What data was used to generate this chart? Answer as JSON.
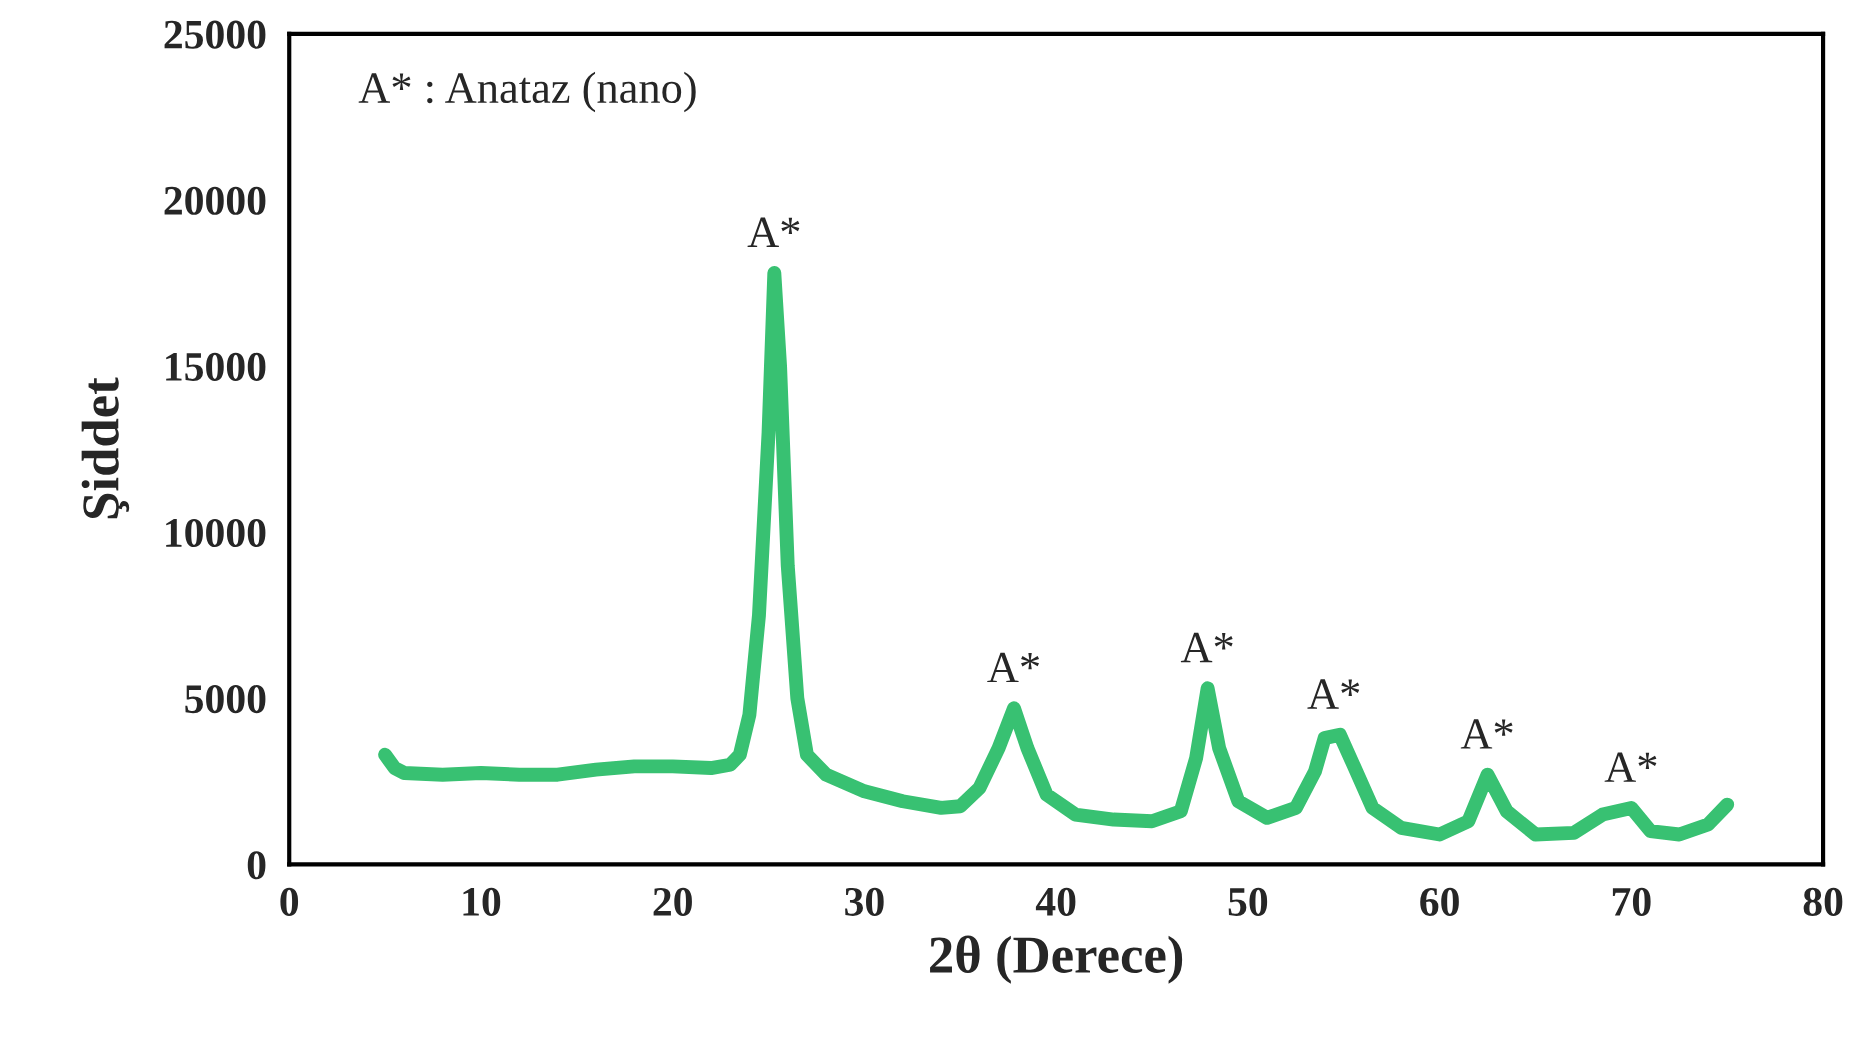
{
  "chart_data": {
    "type": "line",
    "xlabel": "2θ (Derece)",
    "ylabel": "Şiddet",
    "xlim": [
      0,
      80
    ],
    "xticks": [
      0,
      10,
      20,
      30,
      40,
      50,
      60,
      70,
      80
    ],
    "ylim": [
      0,
      25000
    ],
    "yticks": [
      0,
      5000,
      10000,
      15000,
      20000,
      25000
    ],
    "grid": false,
    "legend": false,
    "marker": "none",
    "line_style": "solid",
    "series": [
      {
        "color": "#38c172",
        "x": [
          5,
          5.5,
          6,
          8,
          10,
          12,
          14,
          16,
          18,
          20,
          22,
          23,
          23.5,
          24,
          24.5,
          25,
          25.3,
          25.6,
          26,
          26.5,
          27,
          28,
          30,
          32,
          34,
          35,
          36,
          37,
          37.8,
          38.5,
          39.5,
          41,
          43,
          45,
          46.5,
          47.3,
          47.9,
          48.5,
          49.5,
          51,
          52.5,
          53.5,
          54,
          54.8,
          55.5,
          56.5,
          58,
          60,
          61.5,
          62.5,
          63.5,
          65,
          67,
          68.5,
          70,
          71,
          72.5,
          74,
          75
        ],
        "values": [
          3300,
          2900,
          2750,
          2700,
          2750,
          2700,
          2700,
          2850,
          2950,
          2950,
          2900,
          3000,
          3300,
          4500,
          7500,
          13000,
          17800,
          15000,
          9000,
          5000,
          3300,
          2700,
          2200,
          1900,
          1700,
          1750,
          2300,
          3500,
          4700,
          3500,
          2100,
          1500,
          1350,
          1300,
          1600,
          3200,
          5300,
          3500,
          1900,
          1400,
          1700,
          2800,
          3800,
          3900,
          3000,
          1700,
          1100,
          900,
          1300,
          2700,
          1600,
          900,
          950,
          1500,
          1700,
          1000,
          900,
          1200,
          1800
        ]
      }
    ],
    "annotations": [
      "A* : Anataz (nano)",
      {
        "text": "A*",
        "x": 25.3,
        "y": 17800
      },
      {
        "text": "A*",
        "x": 37.8,
        "y": 4700
      },
      {
        "text": "A*",
        "x": 47.9,
        "y": 5300
      },
      {
        "text": "A*",
        "x": 54.5,
        "y": 3900
      },
      {
        "text": "A*",
        "x": 62.5,
        "y": 2700
      },
      {
        "text": "A*",
        "x": 70,
        "y": 1700
      }
    ]
  }
}
